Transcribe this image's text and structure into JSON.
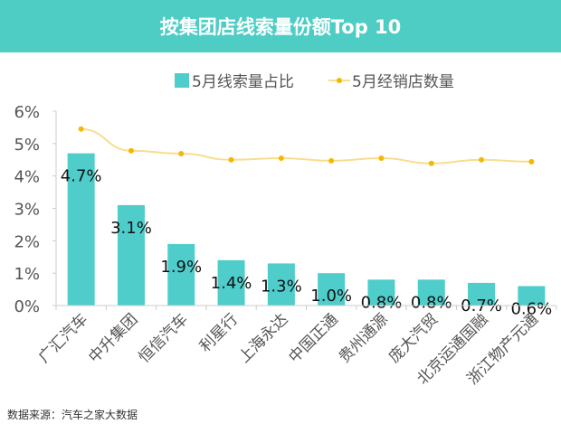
{
  "chart_data": {
    "type": "bar",
    "title": "按集团店线索量份额Top 10",
    "categories": [
      "广汇汽车",
      "中升集团",
      "恒信汽车",
      "利星行",
      "上海永达",
      "中国正通",
      "贵州通源",
      "庞大汽贸",
      "北京运通国融",
      "浙江物产元通"
    ],
    "series": [
      {
        "name": "5月线索量占比",
        "type": "bar",
        "values": [
          4.7,
          3.1,
          1.9,
          1.4,
          1.3,
          1.0,
          0.8,
          0.8,
          0.7,
          0.6
        ],
        "labels": [
          "4.7%",
          "3.1%",
          "1.9%",
          "1.4%",
          "1.3%",
          "1.0%",
          "0.8%",
          "0.8%",
          "0.7%",
          "0.6%"
        ],
        "color": "#4ECDCB"
      },
      {
        "name": "5月经销店数量",
        "type": "line",
        "values": [
          5.45,
          4.78,
          4.69,
          4.5,
          4.55,
          4.47,
          4.55,
          4.39,
          4.5,
          4.44
        ],
        "color": "#F5B800",
        "line_color": "#F8DD8E"
      }
    ],
    "ylim": [
      0,
      6
    ],
    "yticks": [
      "0%",
      "1%",
      "2%",
      "3%",
      "4%",
      "5%",
      "6%"
    ],
    "xlabel": "",
    "ylabel": "",
    "grid": false,
    "legend": "top"
  },
  "colors": {
    "header": "#4ECDC4"
  },
  "source": "数据来源：汽车之家大数据"
}
